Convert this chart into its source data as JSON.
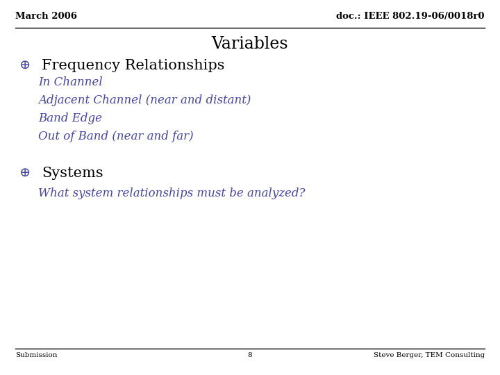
{
  "bg_color": "#ffffff",
  "header_left": "March 2006",
  "header_right": "doc.: IEEE 802.19-06/0018r0",
  "header_color": "#000000",
  "header_fontsize": 9.5,
  "title": "Variables",
  "title_fontsize": 17,
  "title_color": "#000000",
  "bullet_color": "#4444aa",
  "bullet_symbol": "⊕",
  "bullet_fontsize": 14,
  "section1_label": "Frequency Relationships",
  "section1_fontsize": 15,
  "section1_color": "#000000",
  "subitems": [
    "In Channel",
    "Adjacent Channel (near and distant)",
    "Band Edge",
    "Out of Band (near and far)"
  ],
  "subitem_fontsize": 12,
  "subitem_color": "#4444aa",
  "section2_label": "Systems",
  "section2_fontsize": 15,
  "section2_color": "#000000",
  "section2_sub": "What system relationships must be analyzed?",
  "section2_sub_fontsize": 12,
  "section2_sub_color": "#4444aa",
  "footer_left": "Submission",
  "footer_center": "8",
  "footer_right": "Steve Berger, TEM Consulting",
  "footer_fontsize": 7.5,
  "footer_color": "#000000",
  "line_color": "#000000"
}
